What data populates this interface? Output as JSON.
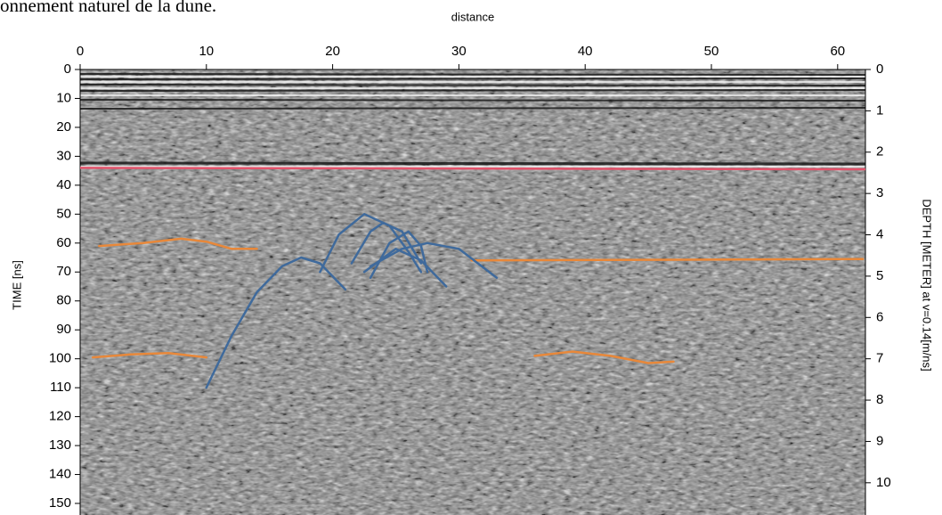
{
  "caption": "onnement naturel de la dune.",
  "chart_data": {
    "type": "line",
    "xlabel": "distance",
    "ylabel": "TIME [ns]",
    "y2label": "DEPTH [METER] at v=0.14[m/ns]",
    "xlim": [
      0,
      62.2
    ],
    "xticks": [
      0,
      10,
      20,
      30,
      40,
      50,
      60
    ],
    "ylim": [
      0,
      154
    ],
    "yticks": [
      0,
      10,
      20,
      30,
      40,
      50,
      60,
      70,
      80,
      90,
      100,
      110,
      120,
      130,
      140,
      150
    ],
    "y2lim": [
      0,
      10.78
    ],
    "y2ticks": [
      0,
      1,
      2,
      3,
      4,
      5,
      6,
      7,
      8,
      9,
      10
    ],
    "y_inverted": true,
    "series": [
      {
        "color": "#e2536b",
        "x": [
          0,
          62.2
        ],
        "values": [
          34,
          34.5
        ]
      },
      {
        "color": "#e8883a",
        "x": [
          1.5,
          5,
          8,
          10,
          12,
          14
        ],
        "values": [
          61,
          60,
          58.5,
          59.5,
          62,
          62
        ]
      },
      {
        "color": "#e8883a",
        "x": [
          31,
          62
        ],
        "values": [
          66,
          65.5
        ]
      },
      {
        "color": "#e8883a",
        "x": [
          1,
          4,
          7,
          10
        ],
        "values": [
          99.5,
          98.5,
          98,
          99.5
        ]
      },
      {
        "color": "#e8883a",
        "x": [
          36,
          39,
          42,
          45,
          47
        ],
        "values": [
          99,
          97.5,
          99,
          101.5,
          101
        ]
      },
      {
        "color": "#3f6a9c",
        "x": [
          10,
          12,
          14,
          16,
          17.5,
          19,
          21
        ],
        "values": [
          110,
          92,
          77,
          68,
          65,
          67,
          76
        ]
      },
      {
        "color": "#3f6a9c",
        "x": [
          19,
          20.5,
          22.5,
          24.5,
          26,
          27
        ],
        "values": [
          70,
          57,
          50,
          54,
          63,
          70
        ]
      },
      {
        "color": "#3f6a9c",
        "x": [
          21.5,
          23,
          24,
          25.5,
          27
        ],
        "values": [
          67,
          56,
          53,
          56,
          67
        ]
      },
      {
        "color": "#3f6a9c",
        "x": [
          23,
          24.5,
          26,
          27,
          27.5
        ],
        "values": [
          72,
          60,
          56,
          61,
          70
        ]
      },
      {
        "color": "#3f6a9c",
        "x": [
          23,
          25.5,
          27.5,
          30,
          33
        ],
        "values": [
          68,
          62,
          60,
          62,
          72
        ]
      },
      {
        "color": "#3f6a9c",
        "x": [
          22.5,
          25,
          27,
          29
        ],
        "values": [
          70,
          62,
          66,
          75
        ]
      }
    ]
  }
}
